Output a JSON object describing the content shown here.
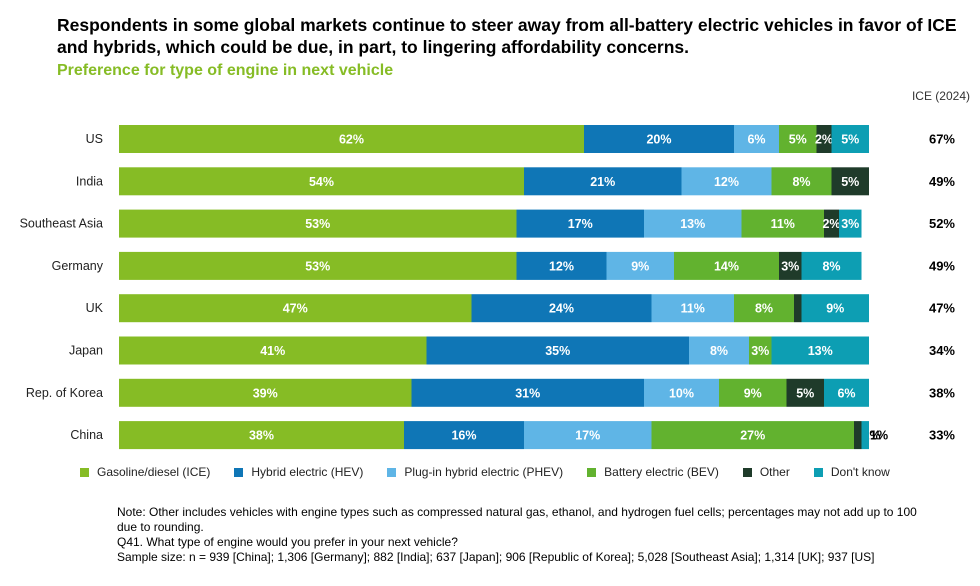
{
  "headline": "Respondents in some global markets continue to steer away from all-battery electric vehicles in favor of ICE and hybrids, which could be due, in part, to lingering affordability concerns.",
  "chart_subtitle": "Preference for type of engine in next vehicle",
  "ice_column_header": "ICE (2024)",
  "colors": {
    "ice": "#86bc25",
    "hev": "#0f76b6",
    "phev": "#5fb5e6",
    "bev": "#62b22f",
    "other": "#1f3b2a",
    "dont_know": "#0d9eb3"
  },
  "chart_data": {
    "type": "bar",
    "orientation": "horizontal",
    "stacked": true,
    "percent_stacked": true,
    "categories": [
      "US",
      "India",
      "Southeast Asia",
      "Germany",
      "UK",
      "Japan",
      "Rep. of Korea",
      "China"
    ],
    "series": [
      {
        "name": "Gasoline/diesel (ICE)",
        "color": "#86bc25",
        "values": [
          62,
          54,
          53,
          53,
          47,
          41,
          39,
          38
        ]
      },
      {
        "name": "Hybrid electric (HEV)",
        "color": "#0f76b6",
        "values": [
          20,
          21,
          17,
          12,
          24,
          35,
          31,
          16
        ]
      },
      {
        "name": "Plug-in hybrid electric (PHEV)",
        "color": "#5fb5e6",
        "values": [
          6,
          12,
          13,
          9,
          11,
          8,
          10,
          17
        ]
      },
      {
        "name": "Battery electric (BEV)",
        "color": "#62b22f",
        "values": [
          5,
          8,
          11,
          14,
          8,
          3,
          9,
          27
        ]
      },
      {
        "name": "Other",
        "color": "#1f3b2a",
        "values": [
          2,
          5,
          2,
          3,
          1,
          0,
          5,
          1
        ]
      },
      {
        "name": "Don't know",
        "color": "#0d9eb3",
        "values": [
          5,
          0,
          3,
          8,
          9,
          13,
          6,
          1
        ]
      }
    ],
    "ice_2024": [
      "67%",
      "49%",
      "52%",
      "49%",
      "47%",
      "34%",
      "38%",
      "33%"
    ],
    "legend_position": "bottom",
    "grid": false
  },
  "legend": [
    {
      "label": "Gasoline/diesel (ICE)",
      "color": "#86bc25"
    },
    {
      "label": "Hybrid electric (HEV)",
      "color": "#0f76b6"
    },
    {
      "label": "Plug-in hybrid electric (PHEV)",
      "color": "#5fb5e6"
    },
    {
      "label": "Battery electric (BEV)",
      "color": "#62b22f"
    },
    {
      "label": "Other",
      "color": "#1f3b2a"
    },
    {
      "label": "Don't know",
      "color": "#0d9eb3"
    }
  ],
  "notes": {
    "note": "Note: Other includes vehicles with engine types such as compressed natural gas, ethanol, and hydrogen fuel cells; percentages may not add up to 100 due to rounding.",
    "question": "Q41. What type of engine would you prefer in your next vehicle?",
    "sample": "Sample size: n = 939 [China]; 1,306 [Germany]; 882 [India]; 637 [Japan]; 906 [Republic of Korea]; 5,028 [Southeast Asia]; 1,314 [UK]; 937 [US]"
  }
}
